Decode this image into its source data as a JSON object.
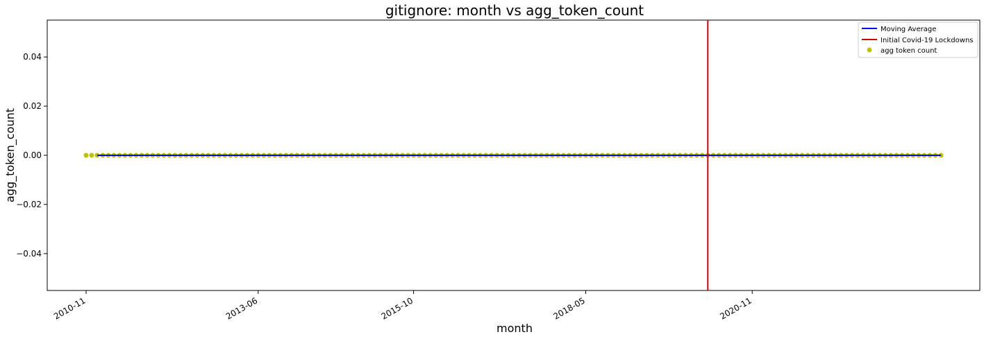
{
  "chart_data": {
    "type": "scatter",
    "title": "gitignore: month vs agg_token_count",
    "xlabel": "month",
    "ylabel": "agg_token_count",
    "x_start": "2010-11",
    "x_end": "2023-09",
    "y_value_all_points": 0.0,
    "moving_average_start": "2011-01",
    "lockdown_month": "2020-03",
    "xlim": [
      "2010-04",
      "2024-04"
    ],
    "ylim": [
      -0.055,
      0.055
    ],
    "x_ticks": [
      "2010-11",
      "2013-06",
      "2015-10",
      "2018-05",
      "2020-11"
    ],
    "y_ticks": [
      "0.04",
      "0.02",
      "0.00",
      "−0.02",
      "−0.04"
    ],
    "y_tick_values": [
      0.04,
      0.02,
      0.0,
      -0.02,
      -0.04
    ],
    "grid": false,
    "legend_position": "top-right",
    "series": [
      {
        "name": "Moving Average",
        "kind": "line",
        "color": "#0000ff"
      },
      {
        "name": "Initial Covid-19 Lockdowns",
        "kind": "vline",
        "color": "#cc0000"
      },
      {
        "name": "agg token count",
        "kind": "scatter",
        "color": "#bfbf00"
      }
    ]
  }
}
